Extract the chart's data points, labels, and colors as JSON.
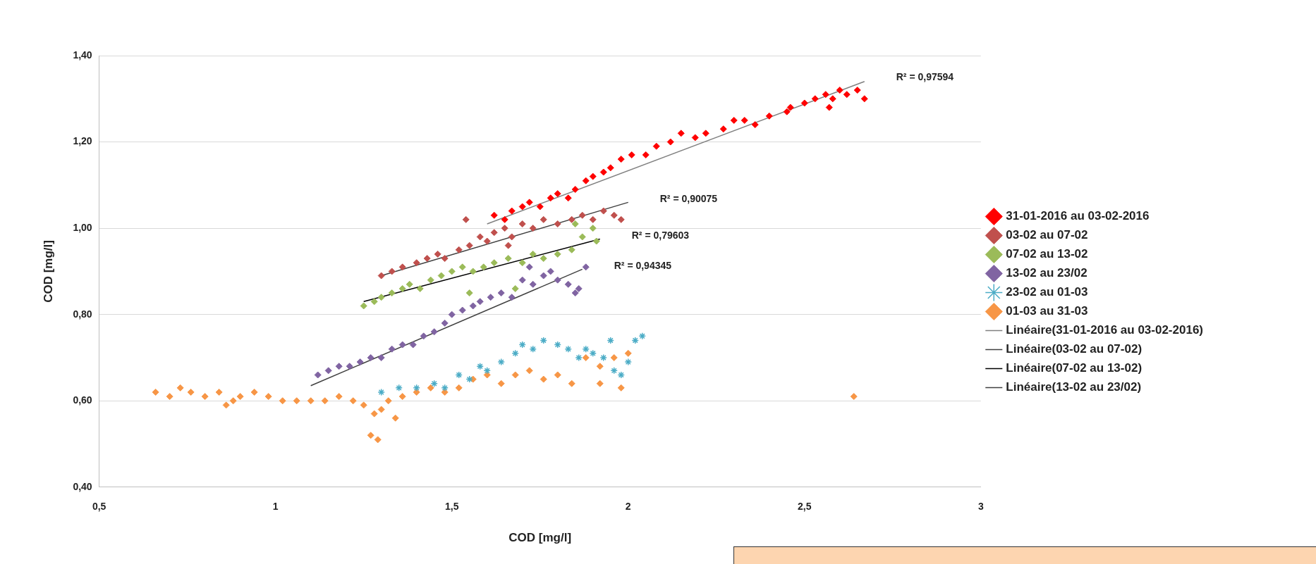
{
  "chart_data": {
    "type": "scatter",
    "xlabel": "COD [mg/l]",
    "ylabel": "COD [mg/l]",
    "xlim": [
      0.5,
      3
    ],
    "xticks": [
      {
        "value": 0.5,
        "label": "0,5"
      },
      1,
      {
        "value": 1.5,
        "label": "1,5"
      },
      2,
      {
        "value": 2.5,
        "label": "2,5"
      },
      3
    ],
    "ylim": [
      0.4,
      1.4
    ],
    "yticks": [
      {
        "value": 0.4,
        "label": "0,40"
      },
      {
        "value": 0.6,
        "label": "0,60"
      },
      {
        "value": 0.8,
        "label": "0,80"
      },
      {
        "value": 1.0,
        "label": "1,00"
      },
      {
        "value": 1.2,
        "label": "1,20"
      },
      {
        "value": 1.4,
        "label": "1,40"
      }
    ],
    "grid": "y",
    "legend": "right",
    "marker": "diamond",
    "annotations": [
      "R² = 0,97594",
      "R² = 0,90075",
      "R² = 0,79603",
      "R² = 0,94345"
    ],
    "series": [
      {
        "name": "31-01-2016 au 03-02-2016",
        "color": "#ff0000",
        "x": [
          1.62,
          1.65,
          1.67,
          1.7,
          1.72,
          1.75,
          1.78,
          1.8,
          1.83,
          1.85,
          1.88,
          1.9,
          1.93,
          1.95,
          1.98,
          2.01,
          2.05,
          2.08,
          2.12,
          2.15,
          2.19,
          2.22,
          2.27,
          2.3,
          2.33,
          2.36,
          2.4,
          2.46,
          2.5,
          2.53,
          2.56,
          2.58,
          2.6,
          2.62,
          2.65,
          2.67,
          2.57,
          2.45
        ],
        "values": [
          1.03,
          1.02,
          1.04,
          1.05,
          1.06,
          1.05,
          1.07,
          1.08,
          1.07,
          1.09,
          1.11,
          1.12,
          1.13,
          1.14,
          1.16,
          1.17,
          1.17,
          1.19,
          1.2,
          1.22,
          1.21,
          1.22,
          1.23,
          1.25,
          1.25,
          1.24,
          1.26,
          1.28,
          1.29,
          1.3,
          1.31,
          1.3,
          1.32,
          1.31,
          1.32,
          1.3,
          1.28,
          1.27
        ]
      },
      {
        "name": "03-02 au 07-02",
        "color": "#c0504d",
        "x": [
          1.3,
          1.33,
          1.36,
          1.4,
          1.43,
          1.46,
          1.48,
          1.52,
          1.55,
          1.58,
          1.6,
          1.62,
          1.65,
          1.67,
          1.7,
          1.73,
          1.76,
          1.8,
          1.84,
          1.87,
          1.9,
          1.93,
          1.96,
          1.98,
          1.54,
          1.66
        ],
        "values": [
          0.89,
          0.9,
          0.91,
          0.92,
          0.93,
          0.94,
          0.93,
          0.95,
          0.96,
          0.98,
          0.97,
          0.99,
          1.0,
          0.98,
          1.01,
          1.0,
          1.02,
          1.01,
          1.02,
          1.03,
          1.02,
          1.04,
          1.03,
          1.02,
          1.02,
          0.96
        ]
      },
      {
        "name": "07-02 au 13-02",
        "color": "#9bbb59",
        "x": [
          1.25,
          1.28,
          1.3,
          1.33,
          1.36,
          1.38,
          1.41,
          1.44,
          1.47,
          1.5,
          1.53,
          1.56,
          1.59,
          1.62,
          1.66,
          1.7,
          1.73,
          1.76,
          1.8,
          1.84,
          1.87,
          1.9,
          1.85,
          1.91,
          1.55,
          1.68
        ],
        "values": [
          0.82,
          0.83,
          0.84,
          0.85,
          0.86,
          0.87,
          0.86,
          0.88,
          0.89,
          0.9,
          0.91,
          0.9,
          0.91,
          0.92,
          0.93,
          0.92,
          0.94,
          0.93,
          0.94,
          0.95,
          0.98,
          1.0,
          1.01,
          0.97,
          0.85,
          0.86
        ]
      },
      {
        "name": "13-02 au 23/02",
        "color": "#8064a2",
        "x": [
          1.12,
          1.15,
          1.18,
          1.21,
          1.24,
          1.27,
          1.3,
          1.33,
          1.36,
          1.39,
          1.42,
          1.45,
          1.48,
          1.5,
          1.53,
          1.56,
          1.58,
          1.61,
          1.64,
          1.67,
          1.7,
          1.73,
          1.76,
          1.78,
          1.8,
          1.83,
          1.86,
          1.88,
          1.85,
          1.72
        ],
        "values": [
          0.66,
          0.67,
          0.68,
          0.68,
          0.69,
          0.7,
          0.7,
          0.72,
          0.73,
          0.73,
          0.75,
          0.76,
          0.78,
          0.8,
          0.81,
          0.82,
          0.83,
          0.84,
          0.85,
          0.84,
          0.88,
          0.87,
          0.89,
          0.9,
          0.88,
          0.87,
          0.86,
          0.91,
          0.85,
          0.91
        ]
      },
      {
        "name": "23-02 au 01-03",
        "color": "#4bacc6",
        "marker": "cross",
        "x": [
          1.3,
          1.35,
          1.4,
          1.45,
          1.48,
          1.52,
          1.55,
          1.58,
          1.6,
          1.64,
          1.68,
          1.7,
          1.73,
          1.76,
          1.8,
          1.83,
          1.86,
          1.9,
          1.93,
          1.96,
          1.98,
          2.0,
          2.02,
          2.04,
          1.95,
          1.88
        ],
        "values": [
          0.62,
          0.63,
          0.63,
          0.64,
          0.63,
          0.66,
          0.65,
          0.68,
          0.67,
          0.69,
          0.71,
          0.73,
          0.72,
          0.74,
          0.73,
          0.72,
          0.7,
          0.71,
          0.7,
          0.67,
          0.66,
          0.69,
          0.74,
          0.75,
          0.74,
          0.72
        ]
      },
      {
        "name": "01-03 au 31-03",
        "color": "#f79646",
        "x": [
          0.66,
          0.7,
          0.73,
          0.76,
          0.8,
          0.84,
          0.88,
          0.9,
          0.94,
          0.98,
          1.02,
          1.06,
          1.1,
          1.14,
          1.18,
          1.22,
          1.25,
          1.28,
          1.3,
          1.27,
          1.29,
          1.32,
          1.36,
          1.4,
          1.44,
          1.48,
          1.52,
          1.56,
          1.6,
          1.64,
          1.68,
          1.72,
          1.76,
          1.8,
          1.84,
          1.88,
          1.92,
          1.96,
          2.0,
          1.98,
          1.92,
          2.64,
          0.86,
          1.34
        ],
        "values": [
          0.62,
          0.61,
          0.63,
          0.62,
          0.61,
          0.62,
          0.6,
          0.61,
          0.62,
          0.61,
          0.6,
          0.6,
          0.6,
          0.6,
          0.61,
          0.6,
          0.59,
          0.57,
          0.58,
          0.52,
          0.51,
          0.6,
          0.61,
          0.62,
          0.63,
          0.62,
          0.63,
          0.65,
          0.66,
          0.64,
          0.66,
          0.67,
          0.65,
          0.66,
          0.64,
          0.7,
          0.68,
          0.7,
          0.71,
          0.63,
          0.64,
          0.61,
          0.59,
          0.56
        ]
      },
      {
        "name": "Linéaire(31-01-2016 au 03-02-2016)",
        "type": "line",
        "color": "#808080",
        "marker": "none",
        "x": [
          1.6,
          2.67
        ],
        "values": [
          1.01,
          1.34
        ]
      },
      {
        "name": "Linéaire(03-02 au 07-02)",
        "type": "line",
        "color": "#404040",
        "marker": "none",
        "x": [
          1.3,
          2.0
        ],
        "values": [
          0.89,
          1.06
        ]
      },
      {
        "name": "Linéaire(07-02 au 13-02)",
        "type": "line",
        "color": "#000000",
        "marker": "none",
        "x": [
          1.25,
          1.92
        ],
        "values": [
          0.83,
          0.975
        ]
      },
      {
        "name": "Linéaire(13-02 au 23/02)",
        "type": "line",
        "color": "#404040",
        "marker": "none",
        "x": [
          1.1,
          1.87
        ],
        "values": [
          0.635,
          0.905
        ]
      }
    ]
  }
}
